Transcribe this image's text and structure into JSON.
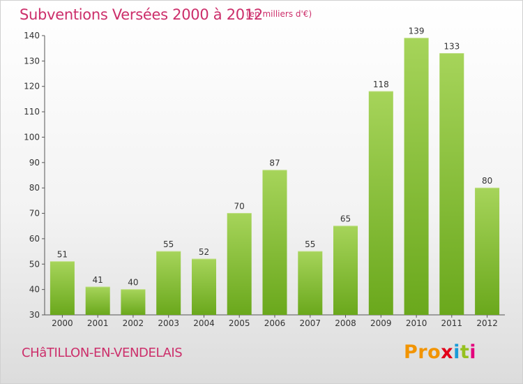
{
  "header": {
    "title": "Subventions Versées 2000 à 2012",
    "unit": "(en milliers d'€)"
  },
  "footer": {
    "commune": "CHâTILLON-EN-VENDELAIS",
    "logo": [
      "Pro",
      "x",
      "i",
      "t",
      "i"
    ]
  },
  "colors": {
    "accent": "#cc2e6a",
    "bar_light": "#a6d45a",
    "bar_dark": "#6aa81c"
  },
  "chart_data": {
    "type": "bar",
    "title": "Subventions Versées 2000 à 2012",
    "subtitle": "(en milliers d'€)",
    "xlabel": "",
    "ylabel": "",
    "categories": [
      "2000",
      "2001",
      "2002",
      "2003",
      "2004",
      "2005",
      "2006",
      "2007",
      "2008",
      "2009",
      "2010",
      "2011",
      "2012"
    ],
    "values": [
      51,
      41,
      40,
      55,
      52,
      70,
      87,
      55,
      65,
      118,
      139,
      133,
      80
    ],
    "ylim": [
      30,
      140
    ],
    "yticks": [
      30,
      40,
      50,
      60,
      70,
      80,
      90,
      100,
      110,
      120,
      130,
      140
    ],
    "grid": false,
    "legend": "none"
  }
}
